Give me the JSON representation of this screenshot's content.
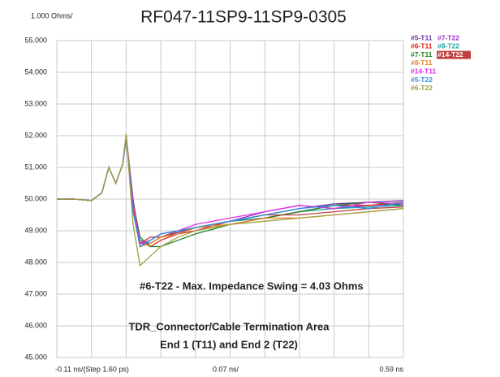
{
  "chart_data": {
    "type": "line",
    "title": "RF047-11SP9-11SP9-0305",
    "y_unit_label": "1.000 Ohms/",
    "x_start_label": "-0.11 ns/(Step 1.60 ps)",
    "x_scale_label": "0.07 ns/",
    "x_end_label": "0.59 ns",
    "annotations": [
      "#6-T22 - Max. Impedance Swing = 4.03 Ohms",
      "TDR_Connector/Cable Termination Area",
      "End 1 (T11) and End 2 (T22)"
    ],
    "x": [
      0,
      0.5,
      1,
      1.3,
      1.5,
      1.7,
      1.9,
      2.0,
      2.2,
      2.4,
      2.7,
      3,
      3.5,
      4,
      5,
      6,
      7,
      8,
      9,
      10
    ],
    "xlim": [
      0,
      10
    ],
    "xticks": [
      0,
      1,
      2,
      3,
      4,
      5,
      6,
      7,
      8,
      9,
      10
    ],
    "ylim": [
      45,
      55
    ],
    "yticks": [
      {
        "value": 45,
        "label": "45.000"
      },
      {
        "value": 46,
        "label": "46.000"
      },
      {
        "value": 47,
        "label": "47.000"
      },
      {
        "value": 48,
        "label": "48.000"
      },
      {
        "value": 49,
        "label": "49.000"
      },
      {
        "value": 50,
        "label": "50.000"
      },
      {
        "value": 51,
        "label": "51.000"
      },
      {
        "value": 52,
        "label": "52.000"
      },
      {
        "value": 53,
        "label": "53.000"
      },
      {
        "value": 54,
        "label": "54.000"
      },
      {
        "value": 55,
        "label": "55.000"
      }
    ],
    "grid": true,
    "series": [
      {
        "name": "#5-T11",
        "color": "#7030a0",
        "values": [
          50,
          50,
          49.95,
          50.2,
          51.0,
          50.5,
          51.1,
          52.0,
          50.0,
          48.6,
          48.6,
          48.8,
          48.95,
          49.1,
          49.3,
          49.5,
          49.7,
          49.85,
          49.9,
          49.95
        ]
      },
      {
        "name": "#7-T22",
        "color": "#9933cc",
        "values": [
          50,
          50,
          49.95,
          50.2,
          51.0,
          50.5,
          51.1,
          51.9,
          49.8,
          48.5,
          48.7,
          48.9,
          49.0,
          49.1,
          49.3,
          49.6,
          49.8,
          49.7,
          49.8,
          49.85
        ]
      },
      {
        "name": "#6-T11",
        "color": "#e02020",
        "values": [
          50,
          50,
          49.95,
          50.2,
          51.0,
          50.5,
          51.1,
          51.95,
          49.7,
          48.7,
          48.5,
          48.7,
          48.9,
          49.0,
          49.3,
          49.4,
          49.6,
          49.8,
          49.8,
          49.9
        ]
      },
      {
        "name": "#8-T22",
        "color": "#20a0a0",
        "values": [
          50,
          50,
          49.95,
          50.2,
          51.0,
          50.5,
          51.1,
          51.9,
          49.6,
          48.7,
          48.6,
          48.8,
          48.9,
          49.1,
          49.3,
          49.4,
          49.6,
          49.7,
          49.75,
          49.8
        ]
      },
      {
        "name": "#7-T11",
        "color": "#208020",
        "values": [
          50,
          50,
          49.95,
          50.2,
          51.0,
          50.5,
          51.1,
          52.0,
          49.9,
          48.8,
          48.5,
          48.5,
          48.7,
          48.9,
          49.2,
          49.4,
          49.6,
          49.8,
          49.9,
          49.8
        ]
      },
      {
        "name": "#14-T22",
        "color": "#c04040",
        "highlighted": true,
        "values": [
          50,
          50,
          49.95,
          50.2,
          51.0,
          50.5,
          51.1,
          51.9,
          49.9,
          48.6,
          48.8,
          48.8,
          49.0,
          49.1,
          49.3,
          49.5,
          49.5,
          49.6,
          49.7,
          49.75
        ]
      },
      {
        "name": "#8-T11",
        "color": "#f08020",
        "values": [
          50,
          50,
          49.95,
          50.2,
          51.0,
          50.5,
          51.1,
          52.05,
          49.7,
          48.5,
          48.6,
          48.8,
          48.9,
          49.1,
          49.2,
          49.4,
          49.4,
          49.5,
          49.6,
          49.7
        ]
      },
      {
        "name": "#14-T11",
        "color": "#e030e0",
        "values": [
          50,
          50,
          49.95,
          50.2,
          51.0,
          50.5,
          51.1,
          51.9,
          49.8,
          48.6,
          48.7,
          48.9,
          49.0,
          49.2,
          49.4,
          49.6,
          49.8,
          49.7,
          49.9,
          49.85
        ]
      },
      {
        "name": "#5-T22",
        "color": "#3090e0",
        "values": [
          50,
          50,
          49.95,
          50.2,
          51.0,
          50.5,
          51.1,
          51.95,
          49.6,
          48.5,
          48.7,
          48.9,
          49.0,
          49.1,
          49.3,
          49.5,
          49.7,
          49.8,
          49.7,
          49.9
        ]
      },
      {
        "name": "#6-T22",
        "color": "#a0a040",
        "values": [
          50,
          50,
          49.95,
          50.2,
          51.0,
          50.5,
          51.1,
          52.05,
          49.2,
          47.9,
          48.2,
          48.5,
          48.8,
          49.0,
          49.2,
          49.3,
          49.4,
          49.5,
          49.6,
          49.7
        ]
      }
    ]
  }
}
